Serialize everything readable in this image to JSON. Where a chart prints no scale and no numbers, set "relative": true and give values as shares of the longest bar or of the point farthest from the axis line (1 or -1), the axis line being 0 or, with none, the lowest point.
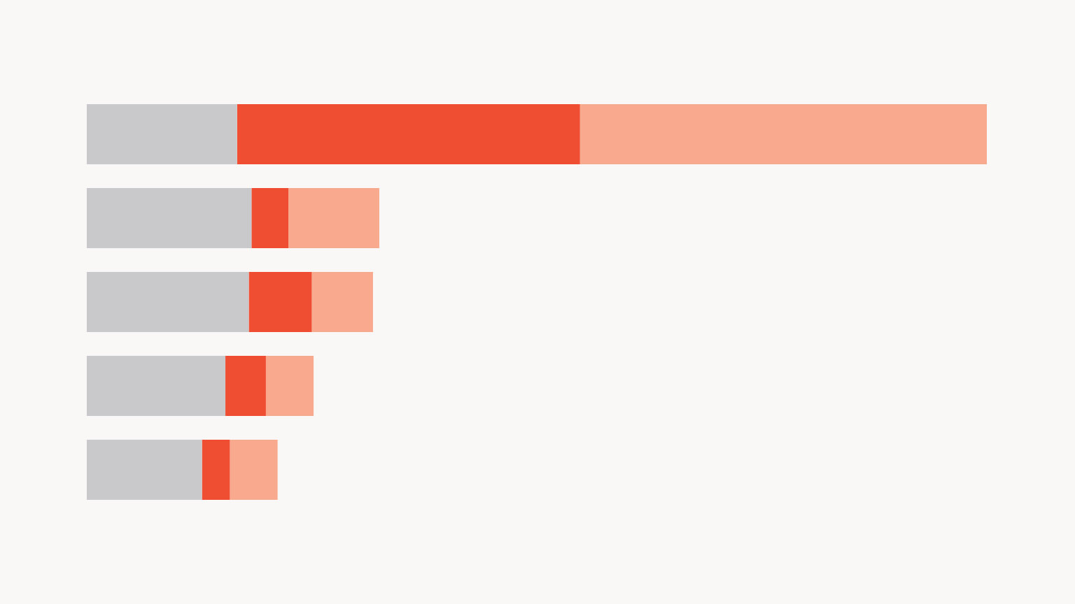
{
  "chart_data": {
    "type": "bar",
    "orientation": "horizontal",
    "stacked": true,
    "relative": true,
    "categories": [
      null,
      null,
      null,
      null,
      null
    ],
    "series": [
      {
        "color": "#c9c8ca",
        "values": [
          0.167,
          0.183,
          0.18,
          0.154,
          0.128
        ]
      },
      {
        "color": "#f04e33",
        "values": [
          0.381,
          0.041,
          0.07,
          0.045,
          0.031
        ]
      },
      {
        "color": "#f9a98e",
        "values": [
          0.452,
          0.101,
          0.068,
          0.053,
          0.053
        ]
      }
    ]
  }
}
